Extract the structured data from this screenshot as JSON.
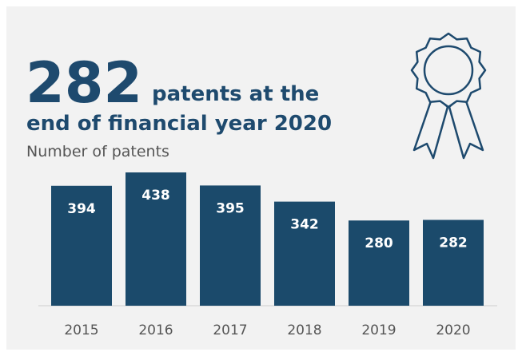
{
  "chart_data": {
    "type": "bar",
    "headline_number": "282",
    "headline_line1": "patents at the",
    "headline_line2": "end of financial year 2020",
    "subtitle": "Number of patents",
    "categories": [
      "2015",
      "2016",
      "2017",
      "2018",
      "2019",
      "2020"
    ],
    "values": [
      394,
      438,
      395,
      342,
      280,
      282
    ],
    "color": "#1b4a6b",
    "ylim": [
      0,
      438
    ]
  }
}
